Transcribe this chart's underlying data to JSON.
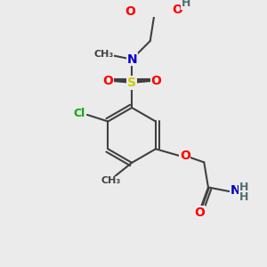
{
  "bg_color": "#ebebeb",
  "bond_color": "#404040",
  "bond_width": 1.5,
  "colors": {
    "O": "#ff0000",
    "N": "#0000cc",
    "S": "#cccc00",
    "Cl": "#00aa00",
    "C": "#404040",
    "H": "#507070"
  },
  "font_size": 10,
  "font_size_small": 9
}
